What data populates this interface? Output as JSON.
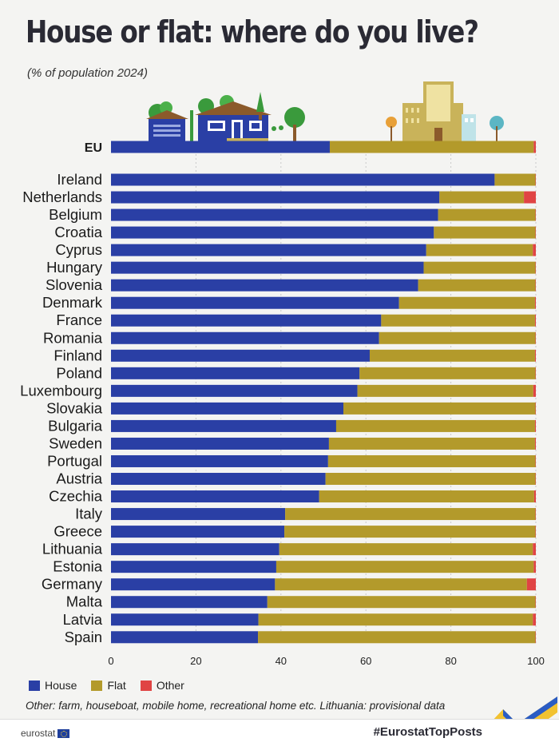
{
  "header": {
    "title": "House or flat: where do you live?",
    "subtitle": "(% of population 2024)"
  },
  "legend": [
    {
      "label": "House",
      "color": "#2a3fa5"
    },
    {
      "label": "Flat",
      "color": "#b39a2b"
    },
    {
      "label": "Other",
      "color": "#e04444"
    }
  ],
  "note": "Other: farm, houseboat, mobile home, recreational home etc. Lithuania: provisional data",
  "footer": {
    "brand": "eurostat",
    "hashtag": "#EurostatTopPosts"
  },
  "icons": [
    "houses-illustration-icon",
    "city-buildings-illustration-icon",
    "eu-flag-icon",
    "eurostat-swoosh-icon"
  ],
  "chart_data": {
    "type": "bar",
    "orientation": "horizontal",
    "stacked": true,
    "xlim": [
      0,
      100
    ],
    "xticks": [
      0,
      20,
      40,
      60,
      80,
      100
    ],
    "grid": true,
    "legend_position": "bottom-left",
    "summary": {
      "category": "EU",
      "values": {
        "House": 51.5,
        "Flat": 48.0,
        "Other": 0.5
      }
    },
    "categories": [
      "Ireland",
      "Netherlands",
      "Belgium",
      "Croatia",
      "Cyprus",
      "Hungary",
      "Slovenia",
      "Denmark",
      "France",
      "Romania",
      "Finland",
      "Poland",
      "Luxembourg",
      "Slovakia",
      "Bulgaria",
      "Sweden",
      "Portugal",
      "Austria",
      "Czechia",
      "Italy",
      "Greece",
      "Lithuania",
      "Estonia",
      "Germany",
      "Malta",
      "Latvia",
      "Spain"
    ],
    "series": [
      {
        "name": "House",
        "color": "#2a3fa5",
        "values": [
          90.3,
          77.3,
          77.0,
          76.0,
          74.2,
          73.6,
          72.3,
          67.8,
          63.6,
          63.1,
          60.9,
          58.5,
          58.0,
          54.7,
          53.0,
          51.3,
          51.1,
          50.5,
          49.0,
          41.0,
          40.8,
          39.6,
          38.9,
          38.6,
          36.8,
          34.7,
          34.6
        ]
      },
      {
        "name": "Flat",
        "color": "#b39a2b",
        "values": [
          9.6,
          19.9,
          22.9,
          23.9,
          25.1,
          26.3,
          27.6,
          32.0,
          36.2,
          36.8,
          38.9,
          41.4,
          41.4,
          45.2,
          46.8,
          48.5,
          48.8,
          49.4,
          50.6,
          58.9,
          59.1,
          59.7,
          60.6,
          59.3,
          63.1,
          64.6,
          65.3
        ]
      },
      {
        "name": "Other",
        "color": "#e04444",
        "values": [
          0.1,
          2.8,
          0.1,
          0.1,
          0.7,
          0.1,
          0.1,
          0.2,
          0.2,
          0.1,
          0.2,
          0.1,
          0.6,
          0.1,
          0.2,
          0.2,
          0.1,
          0.1,
          0.4,
          0.1,
          0.1,
          0.7,
          0.5,
          2.1,
          0.1,
          0.7,
          0.1
        ]
      }
    ]
  }
}
